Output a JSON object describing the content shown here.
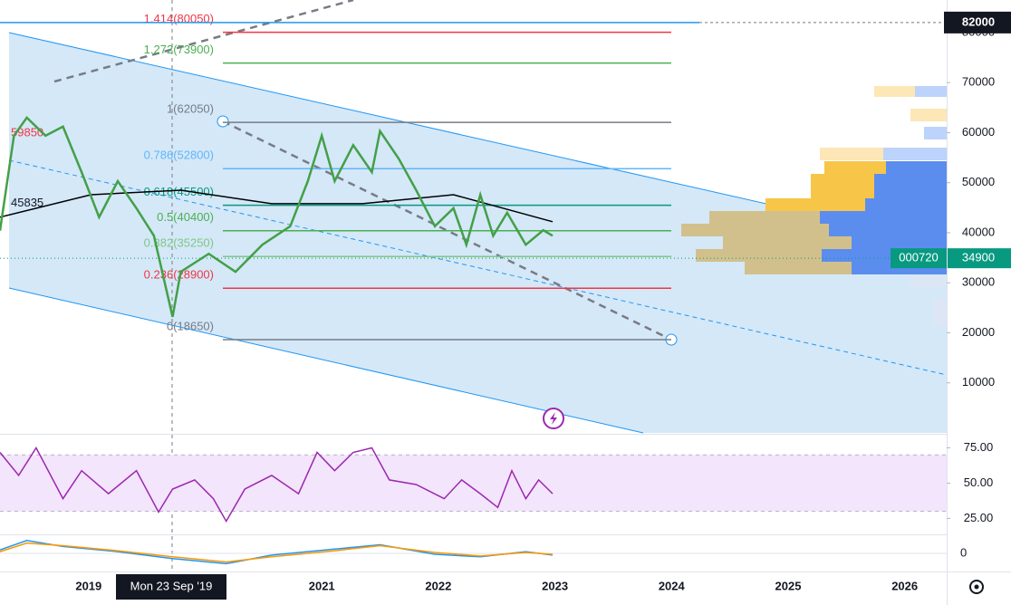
{
  "chart_data": [
    {
      "type": "line",
      "xlim": [
        2018.24,
        2026.36
      ],
      "xticks": [
        2019,
        2021,
        2022,
        2023,
        2024,
        2025,
        2026
      ],
      "ylim": [
        0,
        86500
      ],
      "yticks": [
        10000,
        20000,
        30000,
        40000,
        50000,
        60000,
        70000,
        80000
      ],
      "crosshair_label": "Mon 23 Sep '19",
      "top_level": 82000,
      "ticker": "000720",
      "current_price": 34900,
      "left_labels": [
        59850,
        45835
      ],
      "fib_levels": [
        {
          "label": "1.414(80050)",
          "value": 80050,
          "color": "#f23645"
        },
        {
          "label": "1.272(73900)",
          "value": 73900,
          "color": "#4caf50"
        },
        {
          "label": "1(62050)",
          "value": 62050,
          "color": "#787b86"
        },
        {
          "label": "0.786(52800)",
          "value": 52800,
          "color": "#64b5f6"
        },
        {
          "label": "0.618(45500)",
          "value": 45500,
          "color": "#089981"
        },
        {
          "label": "0.5(40400)",
          "value": 40400,
          "color": "#4caf50"
        },
        {
          "label": "0.382(35250)",
          "value": 35250,
          "color": "#81c784"
        },
        {
          "label": "0.236(28900)",
          "value": 28900,
          "color": "#f23645"
        },
        {
          "label": "0(18650)",
          "value": 18650,
          "color": "#787b86"
        }
      ],
      "series": [
        {
          "color": "#000000",
          "x": [
            2018.24,
            2019.02,
            2019.79,
            2020.57,
            2021.35,
            2022.13,
            2022.98
          ],
          "values": [
            43100,
            47600,
            48500,
            45800,
            45800,
            47600,
            42200
          ]
        },
        {
          "color": "#43a047",
          "x": [
            2018.24,
            2018.36,
            2018.47,
            2018.63,
            2018.78,
            2018.94,
            2019.09,
            2019.25,
            2019.41,
            2019.56,
            2019.72,
            2019.79,
            2020.03,
            2020.26,
            2020.49,
            2020.73,
            2020.88,
            2021.0,
            2021.11,
            2021.27,
            2021.43,
            2021.5,
            2021.66,
            2021.81,
            2021.97,
            2022.13,
            2022.24,
            2022.36,
            2022.47,
            2022.59,
            2022.75,
            2022.9,
            2022.98
          ],
          "values": [
            40400,
            59400,
            63000,
            59400,
            61200,
            52100,
            43100,
            50300,
            44900,
            39400,
            23200,
            32200,
            35800,
            32200,
            37600,
            41300,
            50300,
            59400,
            50300,
            57500,
            52100,
            60300,
            54800,
            48500,
            41300,
            44900,
            37600,
            47600,
            39400,
            44000,
            37600,
            40500,
            39400
          ]
        }
      ]
    },
    {
      "type": "line",
      "ylim": [
        15,
        83
      ],
      "yticks": [
        {
          "value": 25,
          "label": "25.00"
        },
        {
          "value": 50,
          "label": "50.00"
        },
        {
          "value": 75,
          "label": "75.00"
        }
      ],
      "band": [
        30,
        70
      ],
      "series": [
        {
          "color": "#9c27b0",
          "x": [
            2018.24,
            2018.4,
            2018.55,
            2018.78,
            2018.94,
            2019.17,
            2019.41,
            2019.6,
            2019.72,
            2019.91,
            2020.07,
            2020.18,
            2020.34,
            2020.57,
            2020.8,
            2020.96,
            2021.11,
            2021.27,
            2021.43,
            2021.58,
            2021.81,
            2022.05,
            2022.2,
            2022.36,
            2022.51,
            2022.63,
            2022.75,
            2022.86,
            2022.98
          ],
          "values": [
            71.8,
            55.5,
            75,
            39,
            58.8,
            42.5,
            58.8,
            29.5,
            45.8,
            52.3,
            39,
            23,
            45.8,
            55.5,
            42.5,
            71.8,
            58.8,
            71.8,
            75,
            52.3,
            49,
            39,
            52.3,
            42.5,
            32.8,
            58.8,
            39,
            52.3,
            42.5
          ]
        }
      ]
    },
    {
      "type": "line",
      "ylim": [
        -1,
        1
      ],
      "yticks": [
        0
      ],
      "series": [
        {
          "color": "#2196f3",
          "x": [
            2018.24,
            2018.47,
            2018.78,
            2019.25,
            2019.72,
            2020.18,
            2020.57,
            2021.11,
            2021.5,
            2021.97,
            2022.36,
            2022.75,
            2022.98
          ],
          "values": [
            0.2,
            0.75,
            0.4,
            0.1,
            -0.3,
            -0.6,
            -0.1,
            0.25,
            0.5,
            -0.05,
            -0.2,
            0.1,
            -0.1
          ]
        },
        {
          "color": "#ff9800",
          "x": [
            2018.24,
            2018.47,
            2018.78,
            2019.25,
            2019.72,
            2020.18,
            2020.57,
            2021.11,
            2021.5,
            2021.97,
            2022.36,
            2022.75,
            2022.98
          ],
          "values": [
            0.1,
            0.6,
            0.45,
            0.15,
            -0.2,
            -0.5,
            -0.2,
            0.15,
            0.45,
            0.05,
            -0.15,
            0.05,
            -0.05
          ]
        }
      ]
    }
  ]
}
